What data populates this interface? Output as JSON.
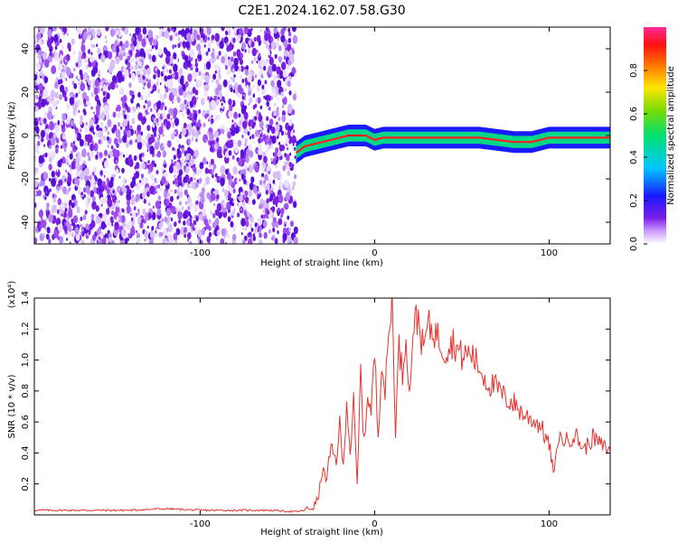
{
  "title": "C2E1.2024.162.07.58.G30",
  "colors": {
    "noise": "#7a1fe0",
    "line": "#e8322e",
    "axis": "#000000"
  },
  "chart_data": [
    {
      "type": "heatmap",
      "xlabel": "Height of straight line (km)",
      "ylabel": "Frequency (Hz)",
      "xlim": [
        -195,
        135
      ],
      "ylim": [
        -50,
        50
      ],
      "xticks": [
        -100,
        0,
        100
      ],
      "xtick_labels": [
        "-100",
        "0",
        "100"
      ],
      "yticks": [
        -40,
        -20,
        0,
        20,
        40
      ],
      "ytick_labels": [
        "-40",
        "-20",
        "0",
        "20",
        "40"
      ],
      "noise_region_x": [
        -195,
        -45
      ],
      "ridge": {
        "x": [
          -45,
          -40,
          -35,
          -30,
          -25,
          -20,
          -15,
          -10,
          -5,
          0,
          5,
          10,
          20,
          40,
          60,
          80,
          90,
          100,
          110,
          120,
          135
        ],
        "y": [
          -8,
          -5,
          -4,
          -3,
          -2,
          -1,
          0,
          0,
          0,
          -2,
          -1,
          -1,
          -1,
          -1,
          -1,
          -3,
          -3,
          -1,
          -1,
          -1,
          -1
        ]
      },
      "colorbar": {
        "label": "Normalized spectral amplitude",
        "range": [
          0,
          1
        ],
        "ticks": [
          0,
          0.2,
          0.4,
          0.6,
          0.8
        ],
        "tick_labels": [
          "0.0",
          "0.2",
          "0.4",
          "0.6",
          "0.8"
        ]
      },
      "grid": false
    },
    {
      "type": "line",
      "xlabel": "Height of straight line (km)",
      "ylabel": "SNR (10 * v/v)",
      "yscale_label": "(x10⁴)",
      "xlim": [
        -195,
        135
      ],
      "ylim": [
        0,
        1.4
      ],
      "xticks": [
        -100,
        0,
        100
      ],
      "xtick_labels": [
        "-100",
        "0",
        "100"
      ],
      "yticks": [
        0.2,
        0.4,
        0.6,
        0.8,
        1.0,
        1.2,
        1.4
      ],
      "ytick_labels": [
        "0.2",
        "0.4",
        "0.6",
        "0.8",
        "1.0",
        "1.2",
        "1.4"
      ],
      "series": [
        {
          "x": [
            -195,
            -160,
            -140,
            -120,
            -100,
            -80,
            -60,
            -45,
            -40,
            -35,
            -32,
            -30,
            -28,
            -25,
            -22,
            -20,
            -18,
            -16,
            -14,
            -12,
            -10,
            -8,
            -6,
            -4,
            -2,
            0,
            2,
            4,
            6,
            8,
            10,
            12,
            14,
            16,
            18,
            20,
            22,
            25,
            28,
            30,
            35,
            40,
            45,
            50,
            55,
            60,
            65,
            70,
            75,
            80,
            85,
            90,
            95,
            100,
            103,
            105,
            110,
            115,
            120,
            125,
            130,
            135
          ],
          "y": [
            0.03,
            0.03,
            0.03,
            0.04,
            0.03,
            0.03,
            0.03,
            0.02,
            0.03,
            0.05,
            0.12,
            0.3,
            0.22,
            0.42,
            0.35,
            0.58,
            0.3,
            0.75,
            0.4,
            0.72,
            0.18,
            0.92,
            0.45,
            0.8,
            0.65,
            1.05,
            0.5,
            1.02,
            0.78,
            1.15,
            1.4,
            0.55,
            1.1,
            0.9,
            1.2,
            0.75,
            1.22,
            1.28,
            1.05,
            1.22,
            1.18,
            1.06,
            1.12,
            1.02,
            1.05,
            0.95,
            0.85,
            0.82,
            0.75,
            0.72,
            0.65,
            0.62,
            0.58,
            0.45,
            0.25,
            0.5,
            0.48,
            0.52,
            0.42,
            0.5,
            0.45,
            0.42
          ]
        }
      ],
      "grid": false
    }
  ]
}
